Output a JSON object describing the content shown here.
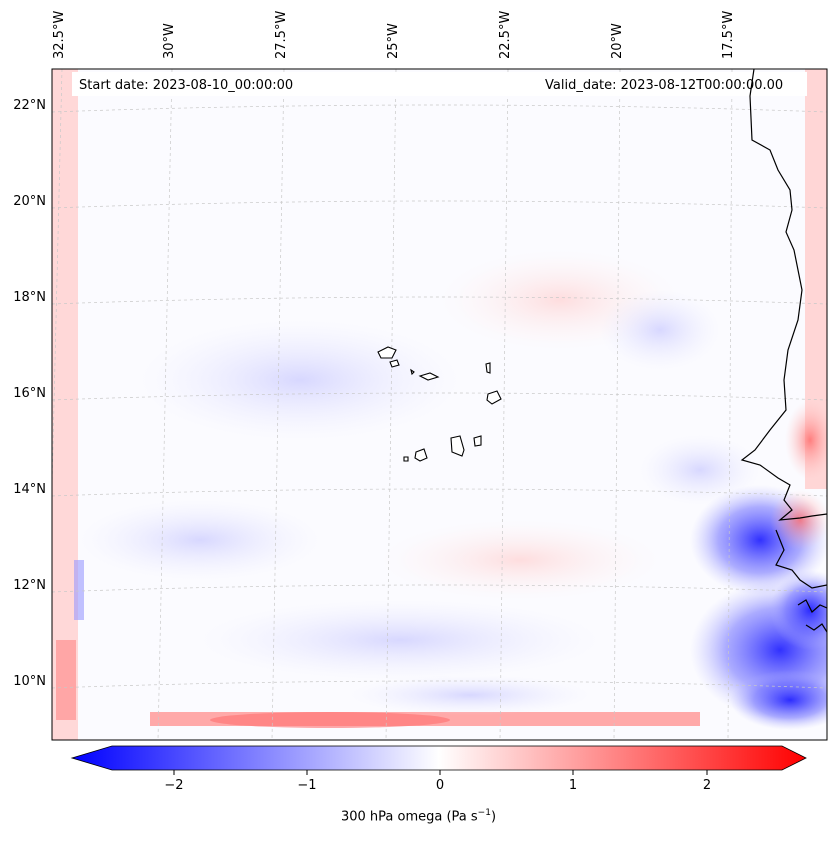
{
  "header": {
    "start_date": "Start date: 2023-08-10_00:00:00",
    "valid_date": "Valid_date: 2023-08-12T00:00:00.00"
  },
  "longitude_labels": [
    "32.5°W",
    "30°W",
    "27.5°W",
    "25°W",
    "22.5°W",
    "20°W",
    "17.5°W"
  ],
  "latitude_labels": [
    "22°N",
    "20°N",
    "18°N",
    "16°N",
    "14°N",
    "12°N",
    "10°N"
  ],
  "colorbar": {
    "ticks": [
      "−2",
      "−1",
      "0",
      "1",
      "2"
    ],
    "label": "300 hPa omega (Pa s",
    "label_sup": "−1",
    "label_end": ")",
    "colors": {
      "min": "#0000ff",
      "mid": "#ffffff",
      "max": "#ff0000"
    }
  },
  "colors": {
    "coastline": "#000000",
    "gridline": "#c8c8c8"
  },
  "map": {
    "projection": "lambert-conformal",
    "coastline": "West Africa / Cape Verde islands"
  }
}
